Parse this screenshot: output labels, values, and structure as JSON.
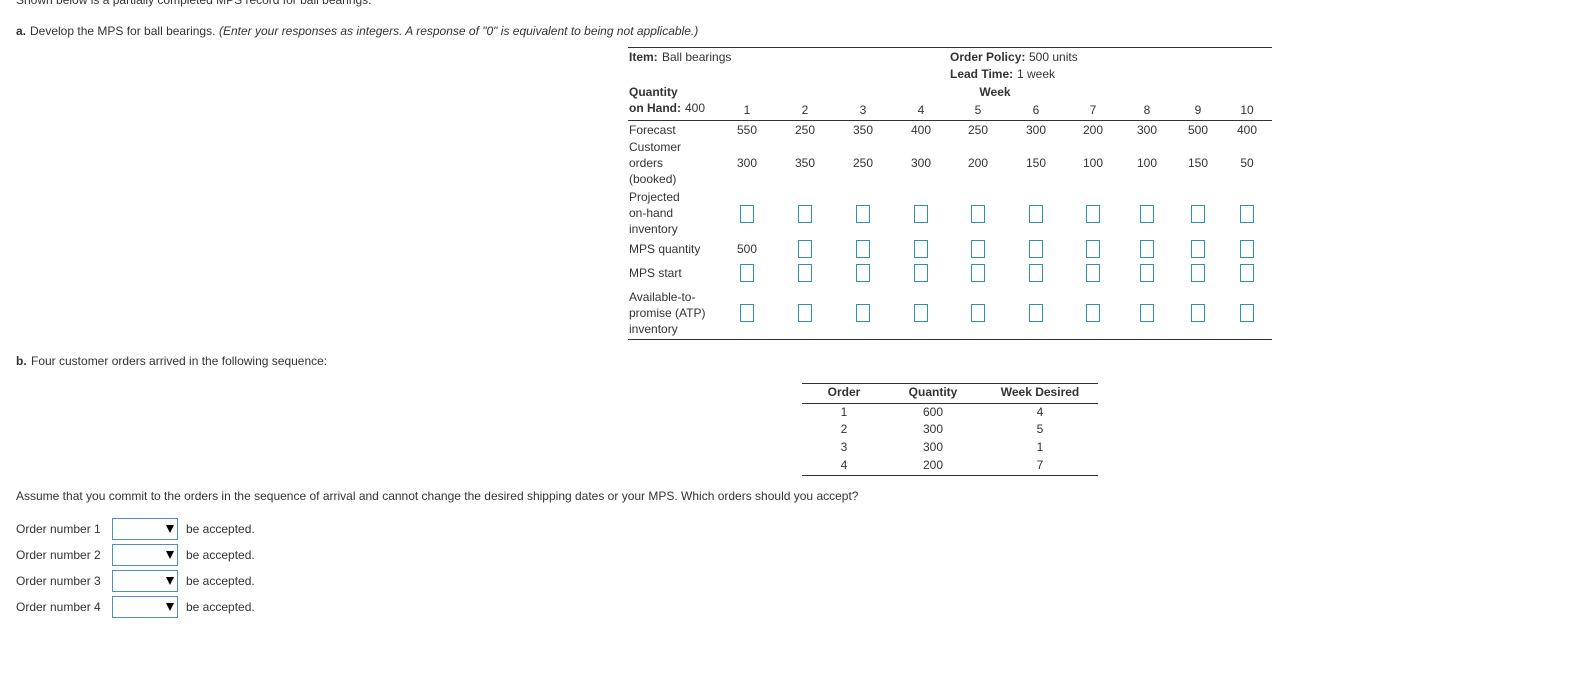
{
  "intro": "Shown below is a partially completed MPS record for ball bearings.",
  "part_a": {
    "label": "a.",
    "text": "Develop the MPS for ball bearings.",
    "note": "(Enter your responses as integers. A response of \"0\" is equivalent to being not applicable.)"
  },
  "mps_table": {
    "item_label": "Item:",
    "item": "Ball bearings",
    "order_policy_label": "Order Policy:",
    "order_policy": "500 units",
    "lead_time_label": "Lead Time:",
    "lead_time": "1 week",
    "week_header": "Week",
    "qoh_label": [
      "Quantity",
      "on Hand:"
    ],
    "qoh": 400,
    "weeks": [
      1,
      2,
      3,
      4,
      5,
      6,
      7,
      8,
      9,
      10
    ],
    "rows": [
      {
        "label": [
          "Forecast"
        ],
        "values": [
          550,
          250,
          350,
          400,
          250,
          300,
          200,
          300,
          500,
          400
        ]
      },
      {
        "label": [
          "Customer",
          "orders",
          "(booked)"
        ],
        "values": [
          300,
          350,
          250,
          300,
          200,
          150,
          100,
          100,
          150,
          50
        ]
      },
      {
        "label": [
          "Projected",
          "on-hand",
          "inventory"
        ]
      },
      {
        "label": [
          "MPS quantity"
        ],
        "values": [
          500
        ]
      },
      {
        "label": [
          "MPS start"
        ]
      },
      {
        "label": [
          "Available-to-",
          "promise (ATP)",
          "inventory"
        ]
      }
    ]
  },
  "part_b": {
    "label": "b.",
    "text": "Four customer orders arrived in the following sequence:",
    "table": {
      "headers": [
        "Order",
        "Quantity",
        "Week Desired"
      ],
      "rows": [
        [
          1,
          600,
          4
        ],
        [
          2,
          300,
          5
        ],
        [
          3,
          300,
          1
        ],
        [
          4,
          200,
          7
        ]
      ]
    },
    "question": "Assume that you commit to the orders in the sequence of arrival and cannot change the desired shipping dates or your MPS. Which orders should you accept?",
    "answers": [
      {
        "label": "Order number 1",
        "suffix": "be accepted."
      },
      {
        "label": "Order number 2",
        "suffix": "be accepted."
      },
      {
        "label": "Order number 3",
        "suffix": "be accepted."
      },
      {
        "label": "Order number 4",
        "suffix": "be accepted."
      }
    ]
  }
}
